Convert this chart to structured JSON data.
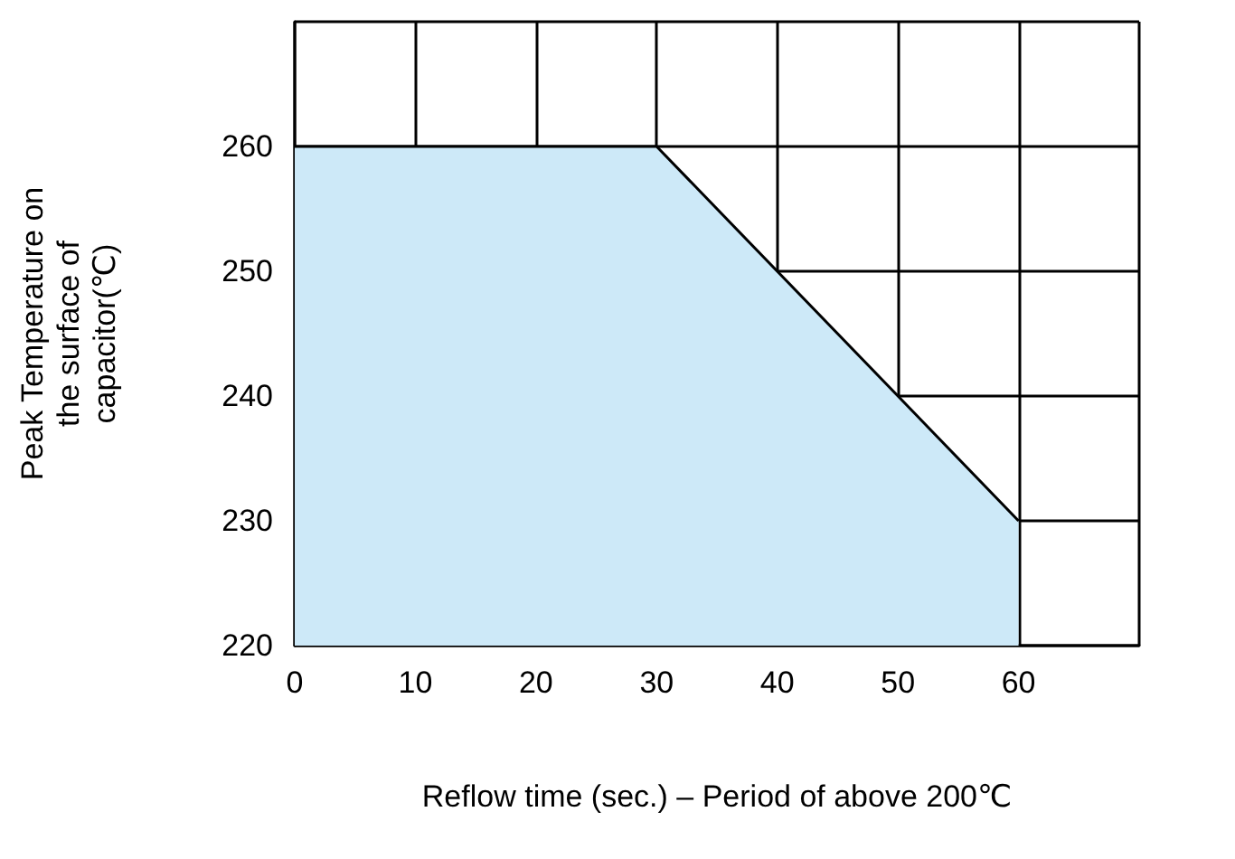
{
  "chart_data": {
    "type": "area",
    "xlabel": "Reflow time (sec.) – Period of above 200℃",
    "ylabel": "Peak Temperature on the surface of capacitor(℃)",
    "x": [
      0,
      30,
      60
    ],
    "series": [
      {
        "color": "#cde9f8",
        "values": [
          260,
          260,
          230
        ]
      }
    ],
    "xlim": [
      0,
      70
    ],
    "xticks": [
      0,
      10,
      20,
      30,
      40,
      50,
      60,
      {
        "value": 70,
        "label": null
      }
    ],
    "ylim": [
      220,
      270
    ],
    "yticks": [
      220,
      230,
      240,
      250,
      260,
      {
        "value": 270,
        "label": null
      }
    ],
    "grid": true,
    "marker": "none"
  }
}
